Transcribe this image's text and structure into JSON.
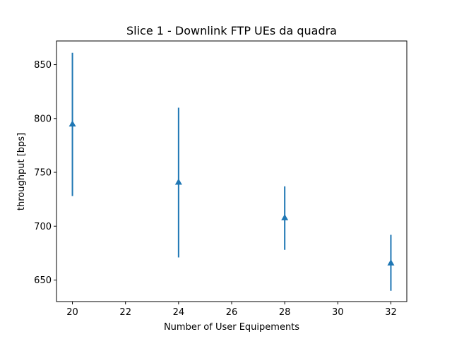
{
  "chart_data": {
    "type": "errorbar",
    "title": "Slice 1 - Downlink FTP UEs da quadra",
    "xlabel": "Number of User Equipements",
    "ylabel": "throughput [bps]",
    "xlim": [
      19.4,
      32.6
    ],
    "ylim": [
      630,
      872
    ],
    "xticks": [
      20,
      22,
      24,
      26,
      28,
      30,
      32
    ],
    "yticks": [
      650,
      700,
      750,
      800,
      850
    ],
    "marker": "triangle-up",
    "color": "#1f77b4",
    "grid": false,
    "series": [
      {
        "points": [
          {
            "x": 20,
            "y": 795,
            "ymin": 728,
            "ymax": 861
          },
          {
            "x": 24,
            "y": 741,
            "ymin": 671,
            "ymax": 810
          },
          {
            "x": 28,
            "y": 708,
            "ymin": 678,
            "ymax": 737
          },
          {
            "x": 32,
            "y": 666,
            "ymin": 640,
            "ymax": 692
          }
        ]
      }
    ]
  }
}
